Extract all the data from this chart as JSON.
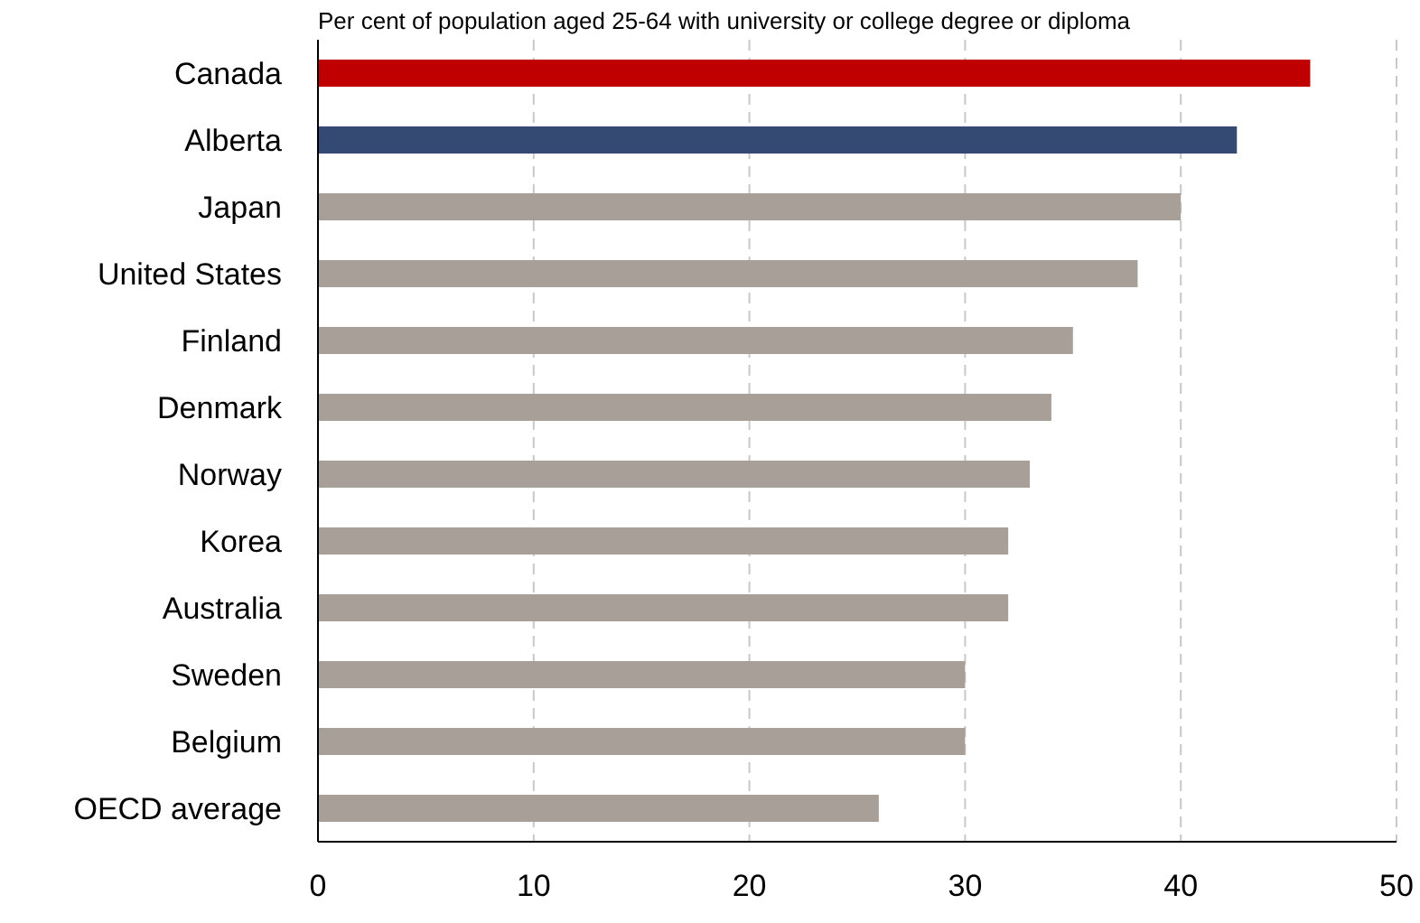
{
  "chart_data": {
    "type": "bar",
    "orientation": "horizontal",
    "title": "Per cent of population aged 25-64 with university or college degree or diploma",
    "categories": [
      "Canada",
      "Alberta",
      "Japan",
      "United States",
      "Finland",
      "Denmark",
      "Norway",
      "Korea",
      "Australia",
      "Sweden",
      "Belgium",
      "OECD average"
    ],
    "values": [
      46,
      42.6,
      40,
      38,
      35,
      34,
      33,
      32,
      32,
      30,
      30,
      26
    ],
    "colors": [
      "#c00000",
      "#344a72",
      "#a89f99",
      "#a89f99",
      "#a89f99",
      "#a89f99",
      "#a89f99",
      "#a89f99",
      "#a89f99",
      "#a89f99",
      "#a89f99",
      "#a89f99"
    ],
    "xlim": [
      0,
      50
    ],
    "xticks": [
      0,
      10,
      20,
      30,
      40,
      50
    ],
    "grid": "x",
    "legend": false
  }
}
